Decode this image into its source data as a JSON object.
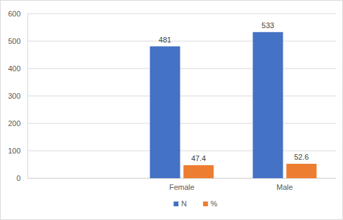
{
  "chart_data": {
    "type": "bar",
    "categories": [
      null,
      "Female",
      "Male"
    ],
    "series": [
      {
        "name": "N",
        "color": "#4472c4",
        "values": [
          null,
          481,
          533
        ]
      },
      {
        "name": "%",
        "color": "#ed7d31",
        "values": [
          null,
          47.4,
          52.6
        ]
      }
    ],
    "ylim": [
      0,
      600
    ],
    "yticks": [
      0,
      100,
      200,
      300,
      400,
      500,
      600
    ],
    "grid": true,
    "data_labels": true,
    "legend": "bottom"
  }
}
